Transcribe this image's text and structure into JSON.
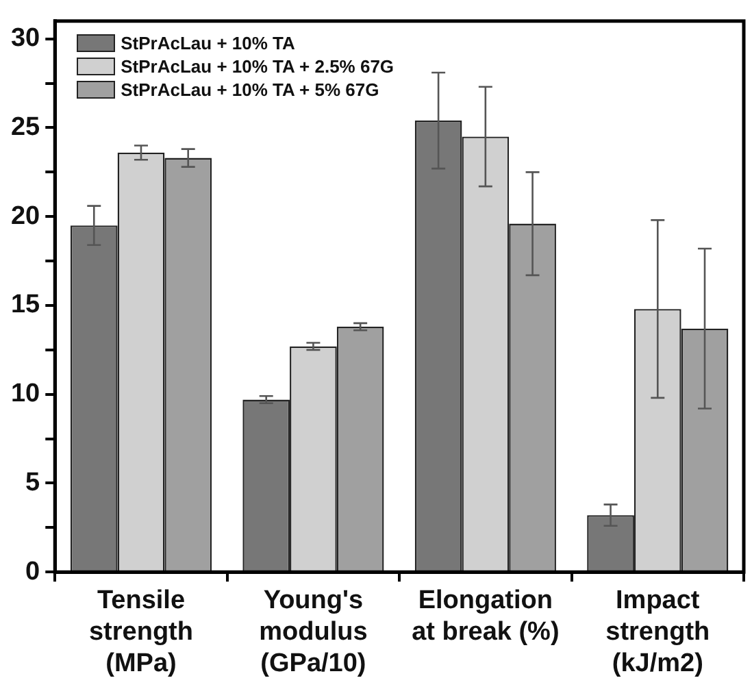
{
  "chart_data": {
    "type": "bar",
    "categories": [
      "Tensile\nstrength\n(MPa)",
      "Young's\nmodulus\n(GPa/10)",
      "Elongation\nat break (%)",
      "Impact\nstrength\n(kJ/m2)"
    ],
    "series": [
      {
        "name": "StPrAcLau + 10% TA",
        "color": "#777777",
        "values": [
          19.5,
          9.7,
          25.4,
          3.2
        ],
        "errors": [
          [
            18.4,
            20.6
          ],
          [
            9.5,
            9.9
          ],
          [
            22.7,
            28.1
          ],
          [
            2.6,
            3.8
          ]
        ]
      },
      {
        "name": "StPrAcLau + 10% TA + 2.5% 67G",
        "color": "#d0d0d0",
        "values": [
          23.6,
          12.7,
          24.5,
          14.8
        ],
        "errors": [
          [
            23.2,
            24.0
          ],
          [
            12.5,
            12.9
          ],
          [
            21.7,
            27.3
          ],
          [
            9.8,
            19.8
          ]
        ]
      },
      {
        "name": "StPrAcLau + 10% TA + 5% 67G",
        "color": "#a0a0a0",
        "values": [
          23.3,
          13.8,
          19.6,
          13.7
        ],
        "errors": [
          [
            22.8,
            23.8
          ],
          [
            13.6,
            14.0
          ],
          [
            16.7,
            22.5
          ],
          [
            9.2,
            18.2
          ]
        ]
      }
    ],
    "ylim": [
      0,
      31
    ],
    "yticks": [
      0,
      {
        "value": 2.5,
        "label": null
      },
      5,
      {
        "value": 7.5,
        "label": null
      },
      10,
      {
        "value": 12.5,
        "label": null
      },
      15,
      {
        "value": 17.5,
        "label": null
      },
      20,
      {
        "value": 22.5,
        "label": null
      },
      25,
      {
        "value": 27.5,
        "label": null
      },
      30
    ],
    "legend": "top left"
  }
}
